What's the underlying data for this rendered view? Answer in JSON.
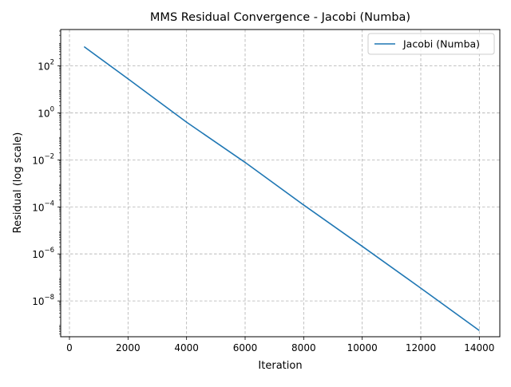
{
  "chart_data": {
    "type": "line",
    "title": "MMS Residual Convergence - Jacobi (Numba)",
    "xlabel": "Iteration",
    "ylabel": "Residual (log scale)",
    "xlim": [
      -300,
      14700
    ],
    "ylim": [
      3e-10,
      3500
    ],
    "yscale": "log",
    "grid": true,
    "grid_style": "dashed",
    "legend_position": "top-right",
    "x_ticks": [
      {
        "value": 0,
        "label": "0"
      },
      {
        "value": 2000,
        "label": "2000"
      },
      {
        "value": 4000,
        "label": "4000"
      },
      {
        "value": 6000,
        "label": "6000"
      },
      {
        "value": 8000,
        "label": "8000"
      },
      {
        "value": 10000,
        "label": "10000"
      },
      {
        "value": 12000,
        "label": "12000"
      },
      {
        "value": 14000,
        "label": "14000"
      }
    ],
    "y_ticks": [
      {
        "value": 100.0,
        "base": "10",
        "exp": "2"
      },
      {
        "value": 1.0,
        "base": "10",
        "exp": "0"
      },
      {
        "value": 0.01,
        "base": "10",
        "exp": "−2"
      },
      {
        "value": 0.0001,
        "base": "10",
        "exp": "−4"
      },
      {
        "value": 1e-06,
        "base": "10",
        "exp": "−6"
      },
      {
        "value": 1e-08,
        "base": "10",
        "exp": "−8"
      }
    ],
    "series": [
      {
        "name": "Jacobi (Numba)",
        "color": "#1f77b4",
        "x": [
          500,
          2000,
          4000,
          6000,
          8000,
          10000,
          12000,
          14000
        ],
        "y": [
          650,
          28,
          0.4,
          0.0078,
          0.00012,
          2.1e-06,
          3.5e-08,
          5.5e-10
        ]
      }
    ]
  }
}
